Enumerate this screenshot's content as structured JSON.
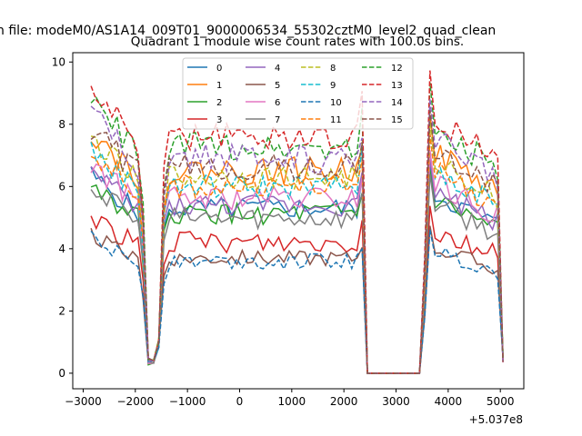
{
  "suptitle": "n file: modeM0/AS1A14_009T01_9000006534_55302cztM0_level2_quad_clean",
  "chart_data": {
    "type": "line",
    "title": "Quadrant 1 module wise count rates with 100.0s bins.",
    "xlabel": "",
    "ylabel": "",
    "x_offset_label": "+5.037e8",
    "xlim": [
      -3200,
      5450
    ],
    "ylim": [
      -0.5,
      10.3
    ],
    "xticks": [
      -3000,
      -2000,
      -1000,
      0,
      1000,
      2000,
      3000,
      4000,
      5000
    ],
    "xtick_labels": [
      "−3000",
      "−2000",
      "−1000",
      "0",
      "1000",
      "2000",
      "3000",
      "4000",
      "5000"
    ],
    "yticks": [
      0,
      2,
      4,
      6,
      8,
      10
    ],
    "ytick_labels": [
      "0",
      "2",
      "4",
      "6",
      "8",
      "10"
    ],
    "grid": false,
    "legend": {
      "placement": "top-center",
      "columns": 4
    },
    "x_segments": [
      {
        "start": -2850,
        "end": -1950
      },
      {
        "start": -1850,
        "end": -1650
      },
      {
        "start": -1550,
        "end": -1450
      },
      {
        "start": -1450,
        "end": 2350
      },
      {
        "start": 2450,
        "end": 2550
      },
      {
        "start": 2550,
        "end": 3450
      },
      {
        "start": 3450,
        "end": 3550
      },
      {
        "start": 3650,
        "end": 4950
      },
      {
        "start": 5050,
        "end": 5050
      }
    ],
    "series": [
      {
        "name": "0",
        "color": "#1f77b4",
        "dash": "solid",
        "level": 5.3,
        "jitter": 0.35
      },
      {
        "name": "1",
        "color": "#ff7f0e",
        "dash": "solid",
        "level": 6.5,
        "jitter": 0.45
      },
      {
        "name": "2",
        "color": "#2ca02c",
        "dash": "solid",
        "level": 5.1,
        "jitter": 0.35
      },
      {
        "name": "3",
        "color": "#d62728",
        "dash": "solid",
        "level": 4.2,
        "jitter": 0.35
      },
      {
        "name": "4",
        "color": "#9467bd",
        "dash": "solid",
        "level": 5.4,
        "jitter": 0.35
      },
      {
        "name": "5",
        "color": "#8c564b",
        "dash": "solid",
        "level": 3.7,
        "jitter": 0.25
      },
      {
        "name": "6",
        "color": "#e377c2",
        "dash": "solid",
        "level": 5.6,
        "jitter": 0.4
      },
      {
        "name": "7",
        "color": "#7f7f7f",
        "dash": "solid",
        "level": 5.0,
        "jitter": 0.35
      },
      {
        "name": "8",
        "color": "#bcbd22",
        "dash": "dashed",
        "level": 6.3,
        "jitter": 0.4
      },
      {
        "name": "9",
        "color": "#17becf",
        "dash": "dashed",
        "level": 6.0,
        "jitter": 0.4
      },
      {
        "name": "10",
        "color": "#1f77b4",
        "dash": "dashed",
        "level": 3.6,
        "jitter": 0.25
      },
      {
        "name": "11",
        "color": "#ff7f0e",
        "dash": "dashed",
        "level": 6.0,
        "jitter": 0.4
      },
      {
        "name": "12",
        "color": "#2ca02c",
        "dash": "dashed",
        "level": 7.3,
        "jitter": 0.45
      },
      {
        "name": "13",
        "color": "#d62728",
        "dash": "dashed",
        "level": 7.6,
        "jitter": 0.45
      },
      {
        "name": "14",
        "color": "#9467bd",
        "dash": "dashed",
        "level": 6.9,
        "jitter": 0.45
      },
      {
        "name": "15",
        "color": "#8c564b",
        "dash": "dashed",
        "level": 6.6,
        "jitter": 0.45
      }
    ]
  }
}
